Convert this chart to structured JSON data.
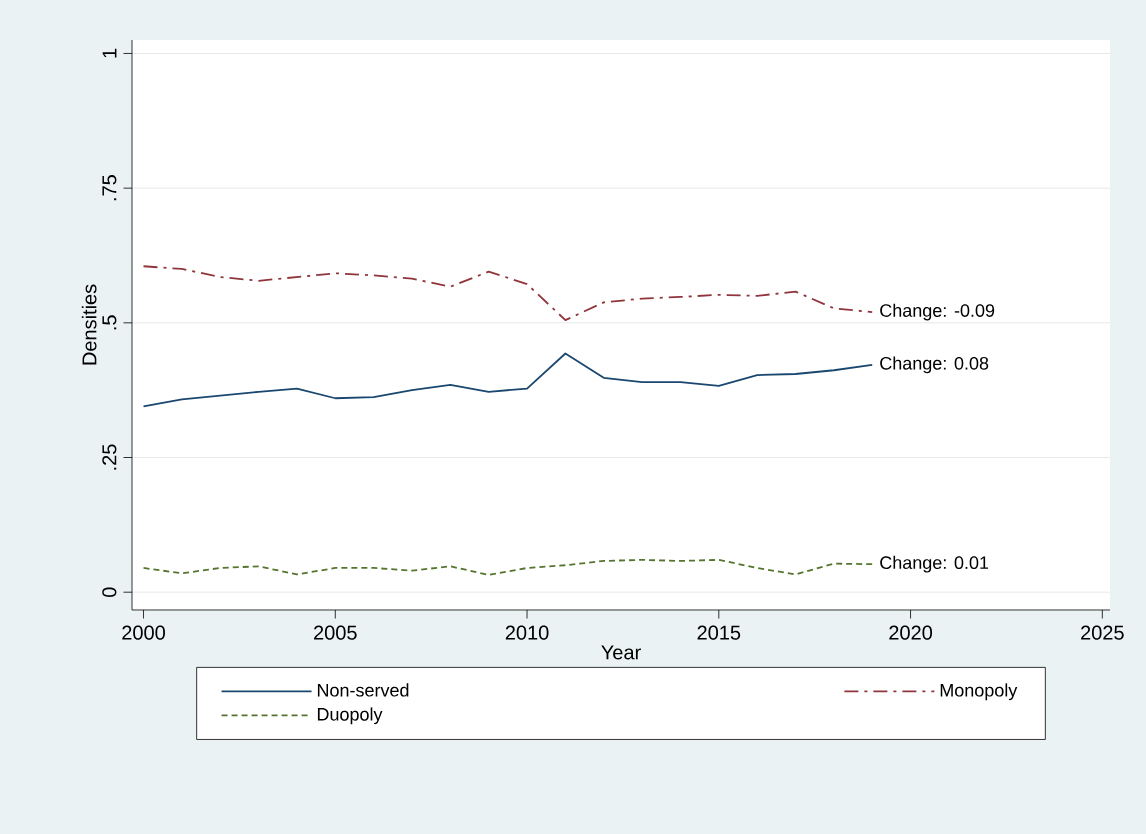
{
  "chart_data": {
    "type": "line",
    "xlabel": "Year",
    "ylabel": "Densities",
    "x": [
      2000,
      2001,
      2002,
      2003,
      2004,
      2005,
      2006,
      2007,
      2008,
      2009,
      2010,
      2011,
      2012,
      2013,
      2014,
      2015,
      2016,
      2017,
      2018,
      2019
    ],
    "series": [
      {
        "name": "Non-served",
        "color": "#1a476f",
        "line_style": "solid",
        "values": [
          0.345,
          0.358,
          0.365,
          0.372,
          0.378,
          0.36,
          0.362,
          0.375,
          0.385,
          0.372,
          0.378,
          0.443,
          0.398,
          0.39,
          0.39,
          0.383,
          0.403,
          0.405,
          0.412,
          0.422
        ]
      },
      {
        "name": "Monopoly",
        "color": "#90353b",
        "line_style": "dashdot",
        "values": [
          0.605,
          0.6,
          0.585,
          0.578,
          0.585,
          0.592,
          0.588,
          0.582,
          0.567,
          0.595,
          0.572,
          0.505,
          0.538,
          0.545,
          0.548,
          0.552,
          0.55,
          0.558,
          0.527,
          0.52
        ]
      },
      {
        "name": "Duopoly",
        "color": "#55752f",
        "line_style": "dashed",
        "values": [
          0.045,
          0.035,
          0.045,
          0.048,
          0.033,
          0.045,
          0.045,
          0.04,
          0.048,
          0.032,
          0.045,
          0.05,
          0.058,
          0.06,
          0.058,
          0.06,
          0.045,
          0.033,
          0.053,
          0.052
        ]
      }
    ],
    "annotations": [
      "Change: 0.08",
      "Change: -0.09",
      "Change: 0.01"
    ],
    "xlim": [
      1999.7,
      2025.2
    ],
    "ylim": [
      -0.033,
      1.025
    ],
    "xticks": [
      2000,
      2005,
      2010,
      2015,
      2020,
      2025
    ],
    "yticks": [
      0,
      {
        "value": 0.25,
        "label": ".25"
      },
      {
        "value": 0.5,
        "label": ".5"
      },
      {
        "value": 0.75,
        "label": ".75"
      },
      1
    ],
    "grid": "y",
    "legend": "bottom"
  }
}
